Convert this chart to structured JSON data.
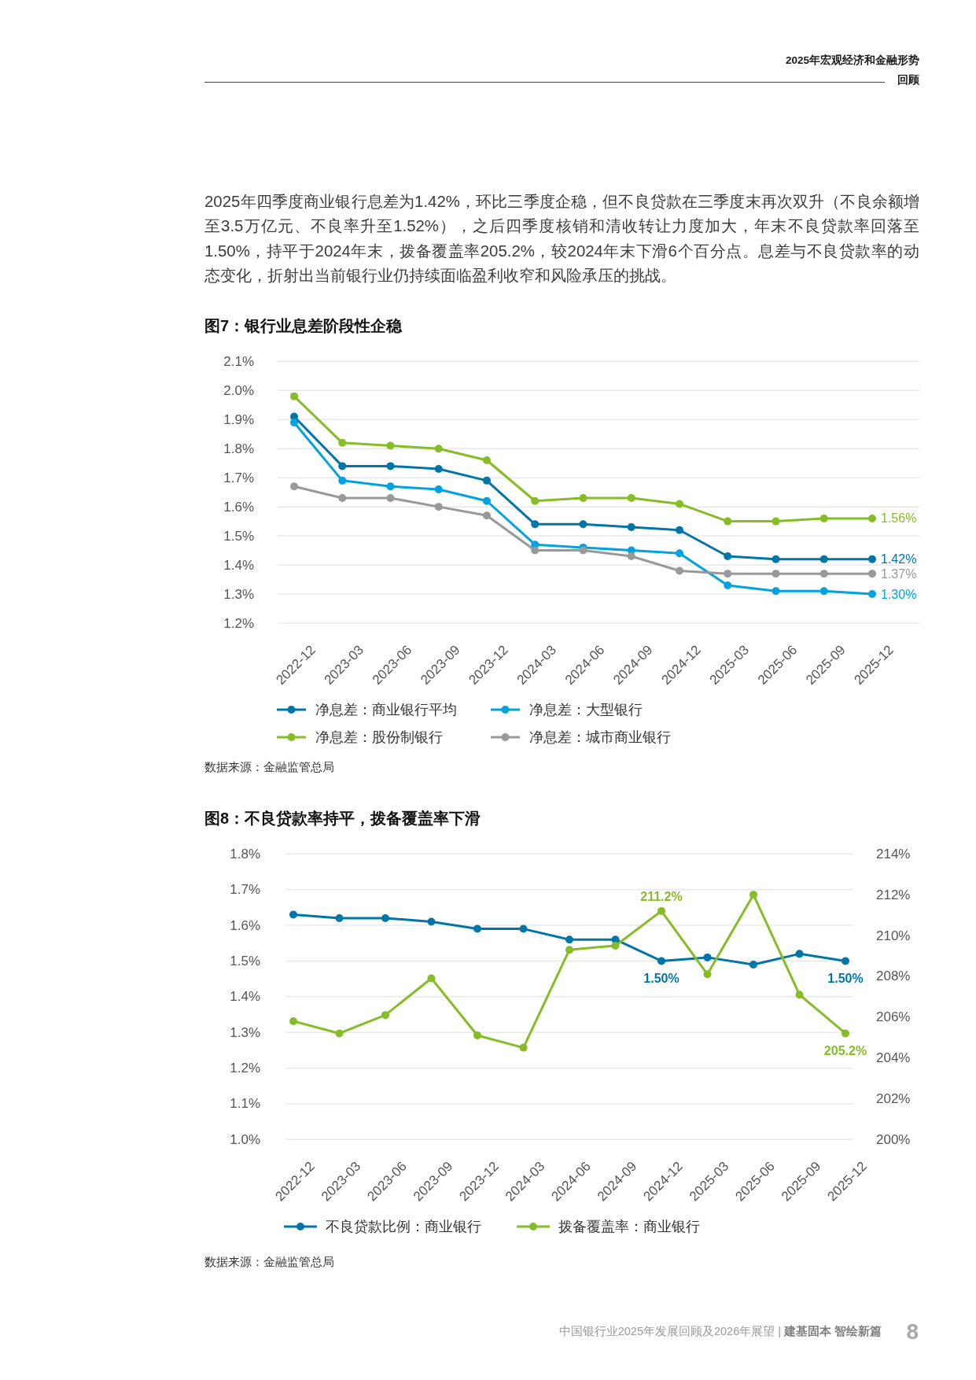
{
  "chart_data": [
    {
      "type": "other",
      "title": "2025年宏观经济和金融形势回顾",
      "annotations": [
        "2025年四季度商业银行息差为1.42%，环比三季度企稳，但不良贷款在三季度末再次双升（不良余额增至3.5万亿元、不良率升至1.52%），之后四季度核销和清收转让力度加大，年末不良贷款率回落至1.50%，持平于2024年末，拨备覆盖率205.2%，较2024年末下滑6个百分点。息差与不良贷款率的动态变化，折射出当前银行业仍持续面临盈利收窄和风险承压的挑战。"
      ]
    },
    {
      "type": "line",
      "title": "图7：银行业息差阶段性企稳",
      "categories": [
        "2022-12",
        "2023-03",
        "2023-06",
        "2023-09",
        "2023-12",
        "2024-03",
        "2024-06",
        "2024-09",
        "2024-12",
        "2025-03",
        "2025-06",
        "2025-09",
        "2025-12"
      ],
      "series": [
        {
          "name": "净息差：商业银行平均",
          "color": "#0076a8",
          "values": [
            1.91,
            1.74,
            1.74,
            1.73,
            1.69,
            1.54,
            1.54,
            1.53,
            1.52,
            1.43,
            1.42,
            1.42,
            1.42
          ],
          "value_labels": [
            null,
            null,
            null,
            null,
            null,
            null,
            null,
            null,
            null,
            null,
            null,
            null,
            "1.42%"
          ]
        },
        {
          "name": "净息差：大型银行",
          "color": "#00a3e0",
          "values": [
            1.89,
            1.69,
            1.67,
            1.66,
            1.62,
            1.47,
            1.46,
            1.45,
            1.44,
            1.33,
            1.31,
            1.31,
            1.3
          ],
          "value_labels": [
            null,
            null,
            null,
            null,
            null,
            null,
            null,
            null,
            null,
            null,
            null,
            null,
            "1.30%"
          ]
        },
        {
          "name": "净息差：股份制银行",
          "color": "#86bc25",
          "values": [
            1.98,
            1.82,
            1.81,
            1.8,
            1.76,
            1.62,
            1.63,
            1.63,
            1.61,
            1.55,
            1.55,
            1.56,
            1.56
          ],
          "value_labels": [
            null,
            null,
            null,
            null,
            null,
            null,
            null,
            null,
            null,
            null,
            null,
            null,
            "1.56%"
          ]
        },
        {
          "name": "净息差：城市商业银行",
          "color": "#97999b",
          "values": [
            1.67,
            1.63,
            1.63,
            1.6,
            1.57,
            1.45,
            1.45,
            1.43,
            1.38,
            1.37,
            1.37,
            1.37,
            1.37
          ],
          "value_labels": [
            null,
            null,
            null,
            null,
            null,
            null,
            null,
            null,
            null,
            null,
            null,
            null,
            "1.37%"
          ]
        }
      ],
      "ylim": [
        1.2,
        2.1
      ],
      "yticks": [
        {
          "value": 1.2,
          "label": "1.2%"
        },
        {
          "value": 1.3,
          "label": "1.3%"
        },
        {
          "value": 1.4,
          "label": "1.4%"
        },
        {
          "value": 1.5,
          "label": "1.5%"
        },
        {
          "value": 1.6,
          "label": "1.6%"
        },
        {
          "value": 1.7,
          "label": "1.7%"
        },
        {
          "value": 1.8,
          "label": "1.8%"
        },
        {
          "value": 1.9,
          "label": "1.9%"
        },
        {
          "value": 2.0,
          "label": "2.0%"
        },
        {
          "value": 2.1,
          "label": "2.1%"
        }
      ],
      "grid": "y",
      "legend": "bottom",
      "marker": "circle",
      "annotations": [
        "数据来源：金融监管总局"
      ]
    },
    {
      "type": "line",
      "title": "图8：不良贷款率持平，拨备覆盖率下滑",
      "categories": [
        "2022-12",
        "2023-03",
        "2023-06",
        "2023-09",
        "2023-12",
        "2024-03",
        "2024-06",
        "2024-09",
        "2024-12",
        "2025-03",
        "2025-06",
        "2025-09",
        "2025-12"
      ],
      "series": [
        {
          "name": "不良贷款比例：商业银行",
          "color": "#0076a8",
          "values": [
            1.63,
            1.62,
            1.62,
            1.61,
            1.59,
            1.59,
            1.56,
            1.56,
            1.5,
            1.51,
            1.49,
            1.52,
            1.5
          ],
          "value_labels": [
            null,
            null,
            null,
            null,
            null,
            null,
            null,
            null,
            "1.50%",
            null,
            null,
            null,
            "1.50%"
          ]
        },
        {
          "name": "拨备覆盖率：商业银行",
          "color": "#86bc25",
          "axis": "y2",
          "values": [
            205.8,
            205.2,
            206.1,
            207.9,
            205.1,
            204.5,
            209.3,
            209.5,
            211.2,
            208.1,
            212.0,
            207.1,
            205.2
          ],
          "value_labels": [
            null,
            null,
            null,
            null,
            null,
            null,
            null,
            null,
            "211.2%",
            null,
            null,
            null,
            "205.2%"
          ]
        }
      ],
      "ylim": [
        1.0,
        1.8
      ],
      "yticks": [
        {
          "value": 1.0,
          "label": "1.0%"
        },
        {
          "value": 1.1,
          "label": "1.1%"
        },
        {
          "value": 1.2,
          "label": "1.2%"
        },
        {
          "value": 1.3,
          "label": "1.3%"
        },
        {
          "value": 1.4,
          "label": "1.4%"
        },
        {
          "value": 1.5,
          "label": "1.5%"
        },
        {
          "value": 1.6,
          "label": "1.6%"
        },
        {
          "value": 1.7,
          "label": "1.7%"
        },
        {
          "value": 1.8,
          "label": "1.8%"
        }
      ],
      "y2lim": [
        200,
        214
      ],
      "y2ticks": [
        {
          "value": 200,
          "label": "200%"
        },
        {
          "value": 202,
          "label": "202%"
        },
        {
          "value": 204,
          "label": "204%"
        },
        {
          "value": 206,
          "label": "206%"
        },
        {
          "value": 208,
          "label": "208%"
        },
        {
          "value": 210,
          "label": "210%"
        },
        {
          "value": 212,
          "label": "212%"
        },
        {
          "value": 214,
          "label": "214%"
        }
      ],
      "grid": "y",
      "legend": "bottom",
      "marker": "circle",
      "annotations": [
        "数据来源：金融监管总局",
        "中国银行业2025年发展回顾及2026年展望 |",
        "建基固本 智绘新篇",
        "8"
      ]
    }
  ]
}
